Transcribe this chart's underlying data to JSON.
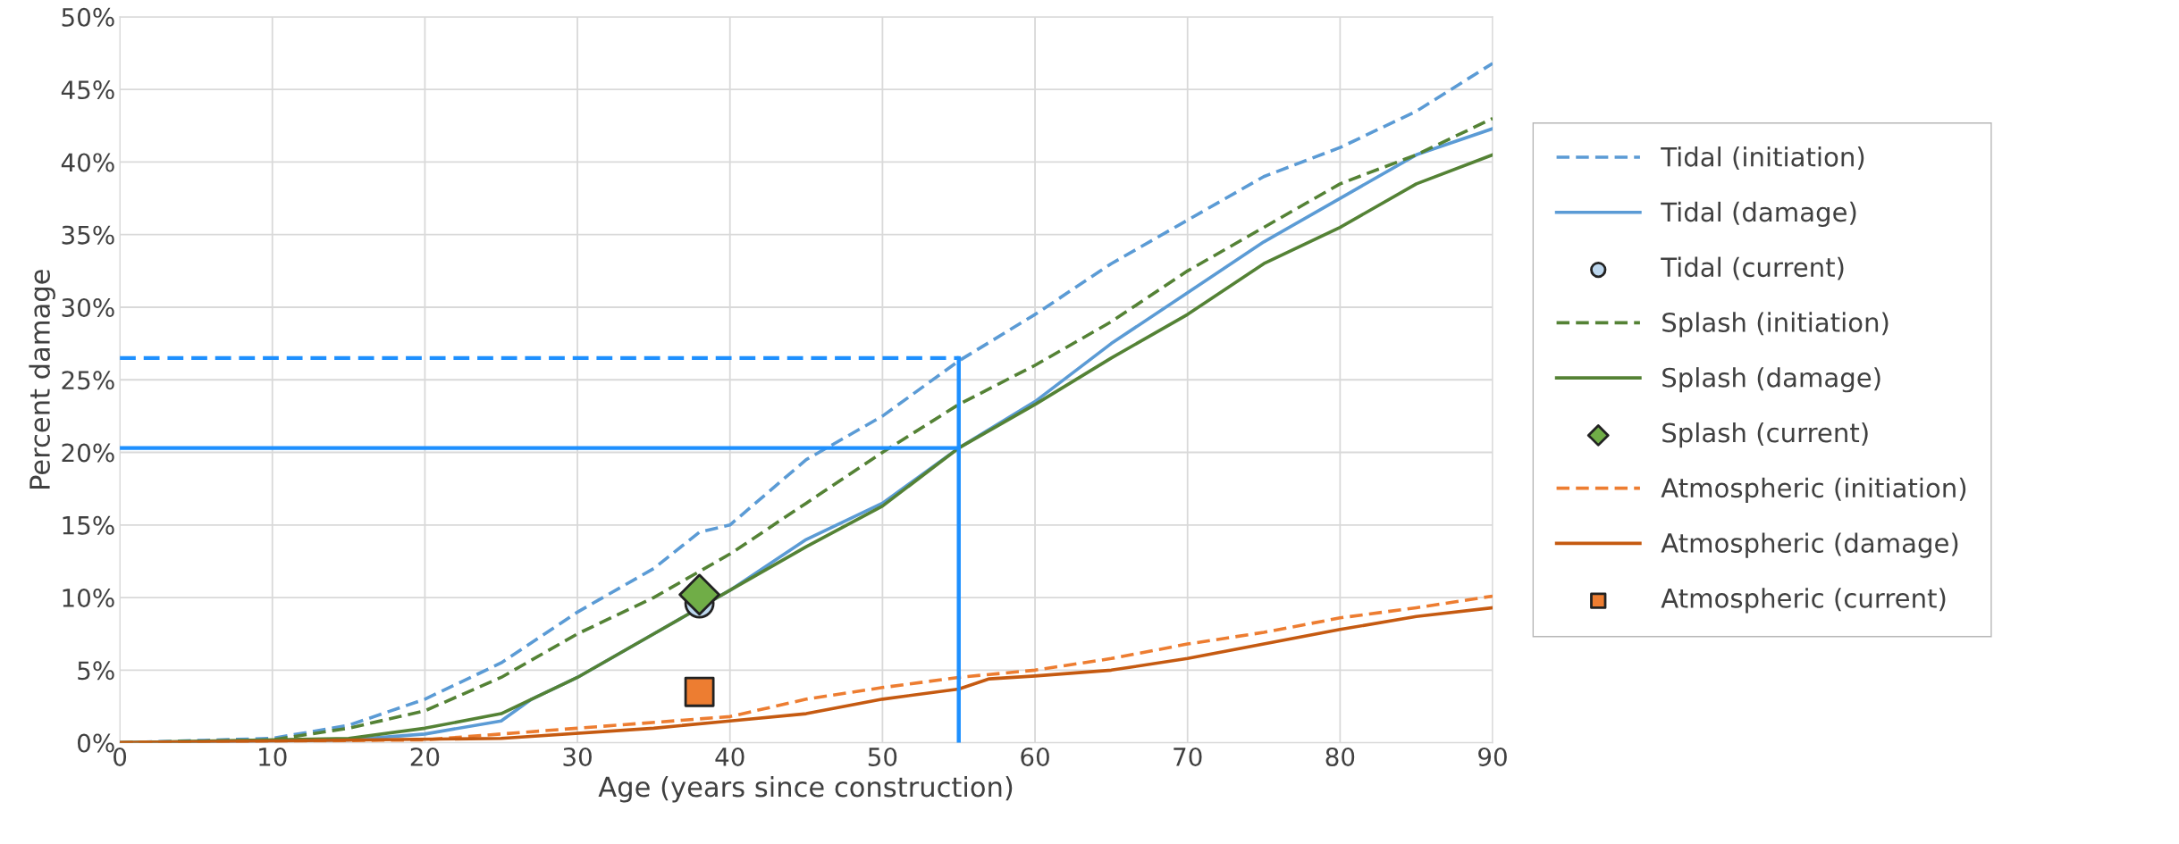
{
  "chart_data": {
    "type": "line",
    "xlabel": "Age (years since construction)",
    "ylabel": "Percent damage",
    "xlim": [
      0,
      90
    ],
    "xticks": [
      0,
      10,
      20,
      30,
      40,
      50,
      60,
      70,
      80,
      90
    ],
    "ylim": [
      0,
      50
    ],
    "yticks": [
      {
        "value": 0,
        "label": "0%"
      },
      {
        "value": 5,
        "label": "5%"
      },
      {
        "value": 10,
        "label": "10%"
      },
      {
        "value": 15,
        "label": "15%"
      },
      {
        "value": 20,
        "label": "20%"
      },
      {
        "value": 25,
        "label": "25%"
      },
      {
        "value": 30,
        "label": "30%"
      },
      {
        "value": 35,
        "label": "35%"
      },
      {
        "value": 40,
        "label": "40%"
      },
      {
        "value": 45,
        "label": "45%"
      },
      {
        "value": 50,
        "label": "50%"
      }
    ],
    "grid": true,
    "legend": "right",
    "ref_lines": [
      {
        "axis": "y",
        "value": 26.5,
        "color": "#1e90ff",
        "line_style": "dashed"
      },
      {
        "axis": "y",
        "value": 20.3,
        "color": "#1e90ff",
        "line_style": "solid"
      },
      {
        "axis": "x",
        "value": 55,
        "color": "#1e90ff",
        "line_style": "solid"
      }
    ],
    "series": [
      {
        "name": "Tidal (initiation)",
        "line_style": "dashed",
        "color": "#5b9bd5",
        "x": [
          0,
          10,
          15,
          20,
          25,
          30,
          35,
          38,
          40,
          45,
          50,
          55,
          60,
          65,
          70,
          75,
          80,
          85,
          90
        ],
        "values": [
          0,
          0.3,
          1.2,
          3.0,
          5.5,
          9,
          12,
          14.5,
          15,
          19.5,
          22.5,
          26.3,
          29.5,
          33,
          36,
          39,
          41,
          43.5,
          46.8
        ]
      },
      {
        "name": "Tidal (damage)",
        "line_style": "solid",
        "color": "#5b9bd5",
        "x": [
          0,
          15,
          20,
          25,
          27,
          30,
          35,
          40,
          45,
          50,
          55,
          60,
          65,
          70,
          75,
          80,
          85,
          90
        ],
        "values": [
          0,
          0.2,
          0.6,
          1.5,
          3,
          4.5,
          7.5,
          10.5,
          14,
          16.5,
          20.3,
          23.5,
          27.5,
          31,
          34.5,
          37.5,
          40.5,
          42.3
        ]
      },
      {
        "name": "Tidal (current)",
        "type": "scatter",
        "marker": "circle",
        "color": "#bdd7ee",
        "x": [
          38
        ],
        "values": [
          9.6
        ]
      },
      {
        "name": "Splash (initiation)",
        "line_style": "dashed",
        "color": "#548235",
        "x": [
          0,
          10,
          15,
          20,
          25,
          30,
          35,
          40,
          45,
          50,
          55,
          60,
          65,
          70,
          75,
          80,
          85,
          90
        ],
        "values": [
          0,
          0.2,
          1,
          2.2,
          4.5,
          7.5,
          10,
          13,
          16.5,
          20,
          23.3,
          26,
          29,
          32.5,
          35.5,
          38.5,
          40.5,
          43
        ]
      },
      {
        "name": "Splash (damage)",
        "line_style": "solid",
        "color": "#548235",
        "x": [
          0,
          15,
          20,
          25,
          30,
          35,
          40,
          45,
          50,
          55,
          60,
          65,
          70,
          75,
          80,
          85,
          90
        ],
        "values": [
          0,
          0.3,
          1,
          2,
          4.5,
          7.5,
          10.5,
          13.5,
          16.3,
          20.3,
          23.3,
          26.5,
          29.5,
          33,
          35.5,
          38.5,
          40.5
        ]
      },
      {
        "name": "Splash (current)",
        "type": "scatter",
        "marker": "diamond",
        "color": "#70ad47",
        "x": [
          38
        ],
        "values": [
          10.2
        ]
      },
      {
        "name": "Atmospheric (initiation)",
        "line_style": "dashed",
        "color": "#ed7d31",
        "x": [
          0,
          20,
          30,
          40,
          45,
          50,
          55,
          60,
          65,
          70,
          75,
          80,
          85,
          90
        ],
        "values": [
          0,
          0.2,
          1,
          1.8,
          3,
          3.8,
          4.5,
          5,
          5.8,
          6.8,
          7.6,
          8.6,
          9.3,
          10.1
        ]
      },
      {
        "name": "Atmospheric (damage)",
        "line_style": "solid",
        "color": "#c55a11",
        "x": [
          0,
          25,
          35,
          40,
          45,
          50,
          55,
          57,
          60,
          65,
          70,
          75,
          80,
          85,
          90
        ],
        "values": [
          0,
          0.3,
          1,
          1.5,
          2,
          3,
          3.7,
          4.4,
          4.6,
          5,
          5.8,
          6.8,
          7.8,
          8.7,
          9.3
        ]
      },
      {
        "name": "Atmospheric (current)",
        "type": "scatter",
        "marker": "square",
        "color": "#ed7d31",
        "x": [
          38
        ],
        "values": [
          3.5
        ]
      }
    ]
  }
}
